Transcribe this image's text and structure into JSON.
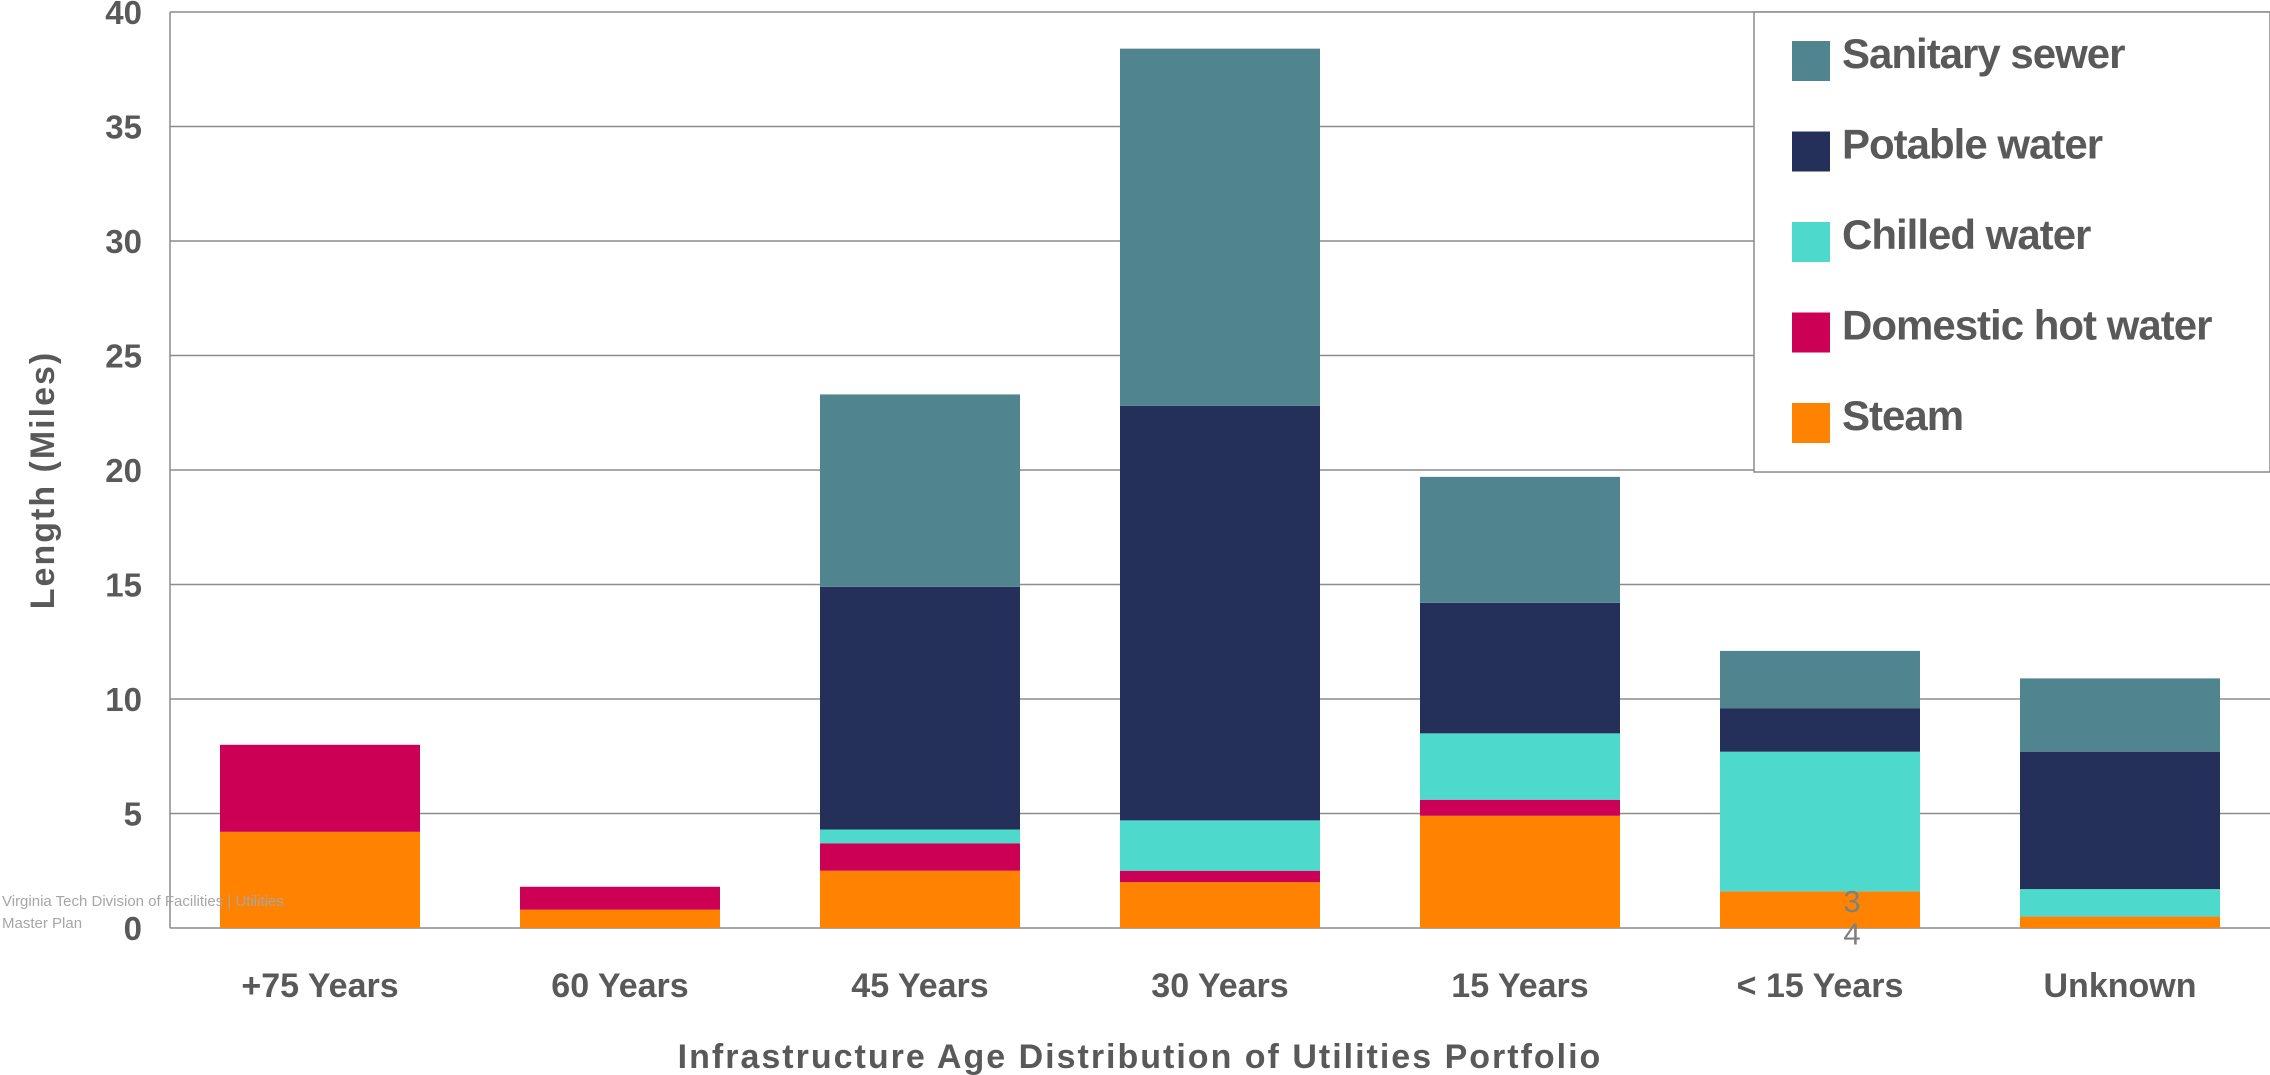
{
  "chart_data": {
    "type": "bar",
    "stacked": true,
    "xlabel": "Infrastructure Age Distribution of Utilities Portfolio",
    "ylabel": "Length (Miles)",
    "ylim": [
      0,
      40
    ],
    "yticks": [
      0,
      5,
      10,
      15,
      20,
      25,
      30,
      35,
      40
    ],
    "grid": true,
    "legend_position": "top-right",
    "categories": [
      "+75 Years",
      "60 Years",
      "45 Years",
      "30 Years",
      "15 Years",
      "< 15 Years",
      "Unknown"
    ],
    "series": [
      {
        "name": "Steam",
        "color": "#ff8300",
        "values": [
          4.2,
          0.8,
          2.5,
          2.0,
          4.9,
          1.6,
          0.5
        ]
      },
      {
        "name": "Domestic hot water",
        "color": "#cc0055",
        "values": [
          3.8,
          1.0,
          1.2,
          0.5,
          0.7,
          0,
          0
        ]
      },
      {
        "name": "Chilled water",
        "color": "#4dd9cc",
        "values": [
          0,
          0,
          0.6,
          2.2,
          2.9,
          6.1,
          1.2
        ]
      },
      {
        "name": "Potable water",
        "color": "#25305a",
        "values": [
          0,
          0,
          10.6,
          18.1,
          5.7,
          1.9,
          6.0
        ]
      },
      {
        "name": "Sanitary sewer",
        "color": "#50848e",
        "values": [
          0,
          0,
          8.4,
          15.6,
          5.5,
          2.5,
          3.2
        ]
      }
    ],
    "legend_order": [
      "Sanitary sewer",
      "Potable water",
      "Chilled water",
      "Domestic hot water",
      "Steam"
    ]
  },
  "footer": {
    "line1": "Virginia Tech Division of Facilities  |  Utilities",
    "line2": "Master Plan",
    "page_number": "3\n4"
  }
}
